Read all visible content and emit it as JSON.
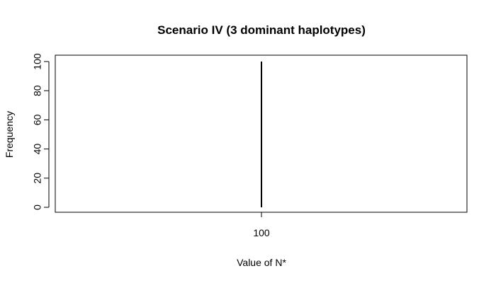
{
  "chart_data": {
    "type": "bar",
    "title": "Scenario IV (3 dominant haplotypes)",
    "xlabel": "Value of N*",
    "ylabel": "Frequency",
    "categories": [
      "100"
    ],
    "values": [
      100
    ],
    "yticks": [
      0,
      20,
      40,
      60,
      80,
      100
    ],
    "ylim": [
      0,
      100
    ],
    "grid": false,
    "color": "#000000"
  }
}
